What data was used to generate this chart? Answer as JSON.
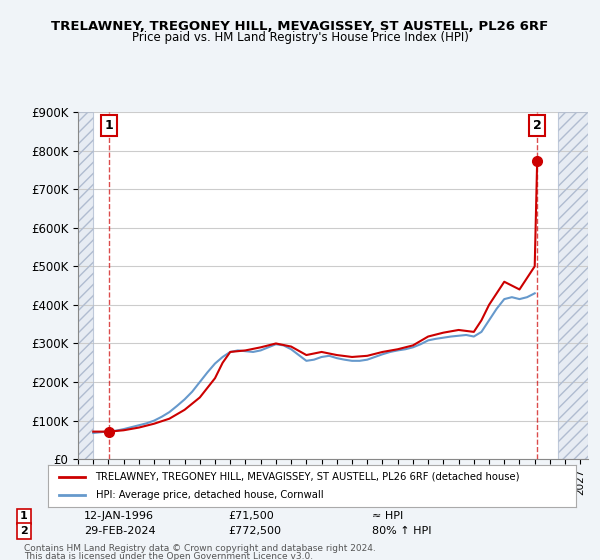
{
  "title": "TRELAWNEY, TREGONEY HILL, MEVAGISSEY, ST AUSTELL, PL26 6RF",
  "subtitle": "Price paid vs. HM Land Registry's House Price Index (HPI)",
  "xlabel": "",
  "ylabel": "",
  "ylim": [
    0,
    900000
  ],
  "yticks": [
    0,
    100000,
    200000,
    300000,
    400000,
    500000,
    600000,
    700000,
    800000,
    900000
  ],
  "ytick_labels": [
    "£0",
    "£100K",
    "£200K",
    "£300K",
    "£400K",
    "£500K",
    "£600K",
    "£700K",
    "£800K",
    "£900K"
  ],
  "xlim_start": 1994.0,
  "xlim_end": 2027.5,
  "bg_color": "#f0f4ff",
  "plot_bg": "#ffffff",
  "hatch_color": "#d0d8e8",
  "grid_color": "#cccccc",
  "price_line_color": "#cc0000",
  "hpi_line_color": "#6699cc",
  "annotation_box_color": "#cc0000",
  "sale1_x": 1996.03,
  "sale1_y": 71500,
  "sale1_label": "1",
  "sale1_date": "12-JAN-1996",
  "sale1_price": "£71,500",
  "sale1_hpi": "≈ HPI",
  "sale2_x": 2024.16,
  "sale2_y": 772500,
  "sale2_label": "2",
  "sale2_date": "29-FEB-2024",
  "sale2_price": "£772,500",
  "sale2_hpi": "80% ↑ HPI",
  "legend_line1": "TRELAWNEY, TREGONEY HILL, MEVAGISSEY, ST AUSTELL, PL26 6RF (detached house)",
  "legend_line2": "HPI: Average price, detached house, Cornwall",
  "footer1": "Contains HM Land Registry data © Crown copyright and database right 2024.",
  "footer2": "This data is licensed under the Open Government Licence v3.0.",
  "hpi_data_x": [
    1995.0,
    1995.5,
    1996.0,
    1996.5,
    1997.0,
    1997.5,
    1998.0,
    1998.5,
    1999.0,
    1999.5,
    2000.0,
    2000.5,
    2001.0,
    2001.5,
    2002.0,
    2002.5,
    2003.0,
    2003.5,
    2004.0,
    2004.5,
    2005.0,
    2005.5,
    2006.0,
    2006.5,
    2007.0,
    2007.5,
    2008.0,
    2008.5,
    2009.0,
    2009.5,
    2010.0,
    2010.5,
    2011.0,
    2011.5,
    2012.0,
    2012.5,
    2013.0,
    2013.5,
    2014.0,
    2014.5,
    2015.0,
    2015.5,
    2016.0,
    2016.5,
    2017.0,
    2017.5,
    2018.0,
    2018.5,
    2019.0,
    2019.5,
    2020.0,
    2020.5,
    2021.0,
    2021.5,
    2022.0,
    2022.5,
    2023.0,
    2023.5,
    2024.0
  ],
  "hpi_data_y": [
    68000,
    70000,
    72000,
    74000,
    78000,
    83000,
    88000,
    93000,
    100000,
    110000,
    122000,
    138000,
    155000,
    175000,
    200000,
    225000,
    248000,
    265000,
    278000,
    282000,
    280000,
    278000,
    282000,
    290000,
    298000,
    295000,
    285000,
    270000,
    255000,
    258000,
    265000,
    268000,
    262000,
    258000,
    255000,
    255000,
    258000,
    265000,
    272000,
    278000,
    282000,
    285000,
    290000,
    298000,
    308000,
    312000,
    315000,
    318000,
    320000,
    322000,
    318000,
    330000,
    360000,
    390000,
    415000,
    420000,
    415000,
    420000,
    430000
  ],
  "price_data_x": [
    1995.0,
    1996.03,
    1997.0,
    1998.0,
    1999.0,
    2000.0,
    2001.0,
    2002.0,
    2003.0,
    2003.5,
    2004.0,
    2005.0,
    2006.0,
    2007.0,
    2008.0,
    2009.0,
    2010.0,
    2011.0,
    2012.0,
    2013.0,
    2014.0,
    2015.0,
    2016.0,
    2017.0,
    2018.0,
    2019.0,
    2020.0,
    2020.5,
    2021.0,
    2021.5,
    2022.0,
    2022.5,
    2023.0,
    2023.5,
    2024.0,
    2024.16
  ],
  "price_data_y": [
    71500,
    71500,
    75000,
    82000,
    92000,
    105000,
    128000,
    160000,
    210000,
    250000,
    278000,
    282000,
    290000,
    300000,
    292000,
    270000,
    278000,
    270000,
    265000,
    268000,
    278000,
    285000,
    295000,
    318000,
    328000,
    335000,
    330000,
    360000,
    400000,
    430000,
    460000,
    450000,
    440000,
    470000,
    500000,
    772500
  ]
}
